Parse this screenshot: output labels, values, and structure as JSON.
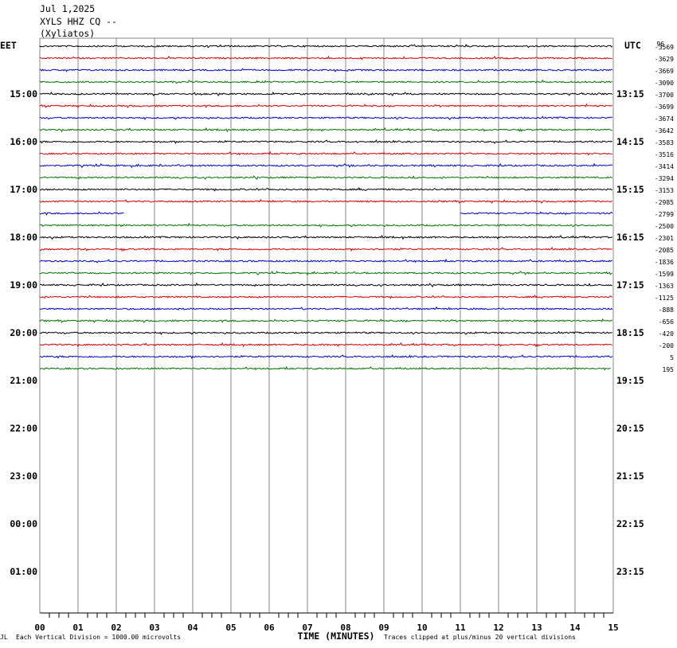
{
  "header": {
    "date": "Jul 1,2025",
    "station": "XYLS HHZ CQ --",
    "location": "(Xyliatos)"
  },
  "timezones": {
    "left": "EET",
    "right": "UTC"
  },
  "footer": {
    "corner": "JL",
    "scale": "Each Vertical Division = 1000.00 microvolts",
    "clip": "Traces clipped at plus/minus 20 vertical divisions"
  },
  "colors": {
    "trace_cycle": [
      "#000000",
      "#dd0000",
      "#0000cc",
      "#007700"
    ],
    "grid": "#888888"
  },
  "chart_data": {
    "type": "line",
    "title": "XYLS HHZ CQ --",
    "xlabel": "TIME (MINUTES)",
    "xlim": [
      0,
      15
    ],
    "x_ticks": [
      "00",
      "01",
      "02",
      "03",
      "04",
      "05",
      "06",
      "07",
      "08",
      "09",
      "10",
      "11",
      "12",
      "13",
      "14",
      "15"
    ],
    "left_hour_labels": [
      "15:00",
      "16:00",
      "17:00",
      "18:00",
      "19:00",
      "20:00",
      "21:00",
      "22:00",
      "23:00",
      "00:00",
      "01:00"
    ],
    "right_hour_labels": [
      "13:15",
      "14:15",
      "15:15",
      "16:15",
      "17:15",
      "18:15",
      "19:15",
      "20:15",
      "21:15",
      "22:15",
      "23:15"
    ],
    "top_offset_label": "96",
    "trace_offsets": [
      "-3569",
      "-3629",
      "-3669",
      "-3090",
      "-3700",
      "-3699",
      "-3674",
      "-3642",
      "-3583",
      "-3516",
      "-3414",
      "-3294",
      "-3153",
      "-2985",
      "-2799",
      "-2500",
      "-2301",
      "-2085",
      "-1836",
      "-1599",
      "-1363",
      "-1125",
      "-888",
      "-656",
      "-420",
      "-200",
      "5",
      "195"
    ],
    "gap": {
      "trace_index": 14,
      "from_min": 2.2,
      "to_min": 11.0
    },
    "last_trace_end_min": 14.95
  }
}
